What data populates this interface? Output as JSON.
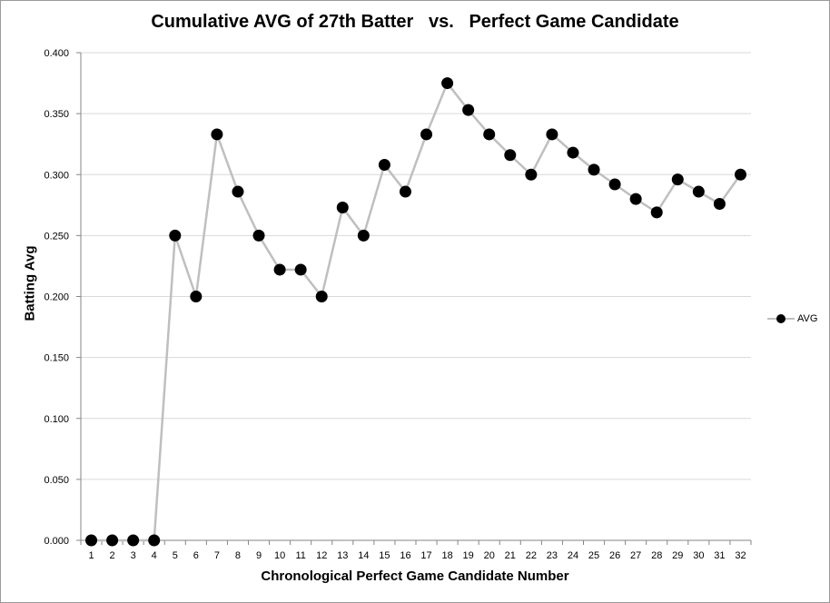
{
  "chart_data": {
    "type": "line",
    "title": "Cumulative AVG of 27th Batter   vs.   Perfect Game Candidate",
    "xlabel": "Chronological Perfect Game Candidate Number",
    "ylabel": "Batting Avg",
    "ylim": [
      0,
      0.4
    ],
    "yticks": [
      "0.000",
      "0.050",
      "0.100",
      "0.150",
      "0.200",
      "0.250",
      "0.300",
      "0.350",
      "0.400"
    ],
    "categories": [
      "1",
      "2",
      "3",
      "4",
      "5",
      "6",
      "7",
      "8",
      "9",
      "10",
      "11",
      "12",
      "13",
      "14",
      "15",
      "16",
      "17",
      "18",
      "19",
      "20",
      "21",
      "22",
      "23",
      "24",
      "25",
      "26",
      "27",
      "28",
      "29",
      "30",
      "31",
      "32"
    ],
    "series": [
      {
        "name": "AVG",
        "values": [
          0,
          0,
          0,
          0,
          0.25,
          0.2,
          0.333,
          0.286,
          0.25,
          0.222,
          0.222,
          0.2,
          0.273,
          0.25,
          0.308,
          0.286,
          0.333,
          0.375,
          0.353,
          0.333,
          0.316,
          0.3,
          0.333,
          0.318,
          0.304,
          0.292,
          0.28,
          0.269,
          0.296,
          0.286,
          0.276,
          0.3
        ]
      }
    ],
    "grid": true,
    "legend": "right",
    "colors": {
      "line": "#bfbfbf",
      "marker": "#000000",
      "grid": "#d9d9d9",
      "axis": "#868686"
    }
  }
}
